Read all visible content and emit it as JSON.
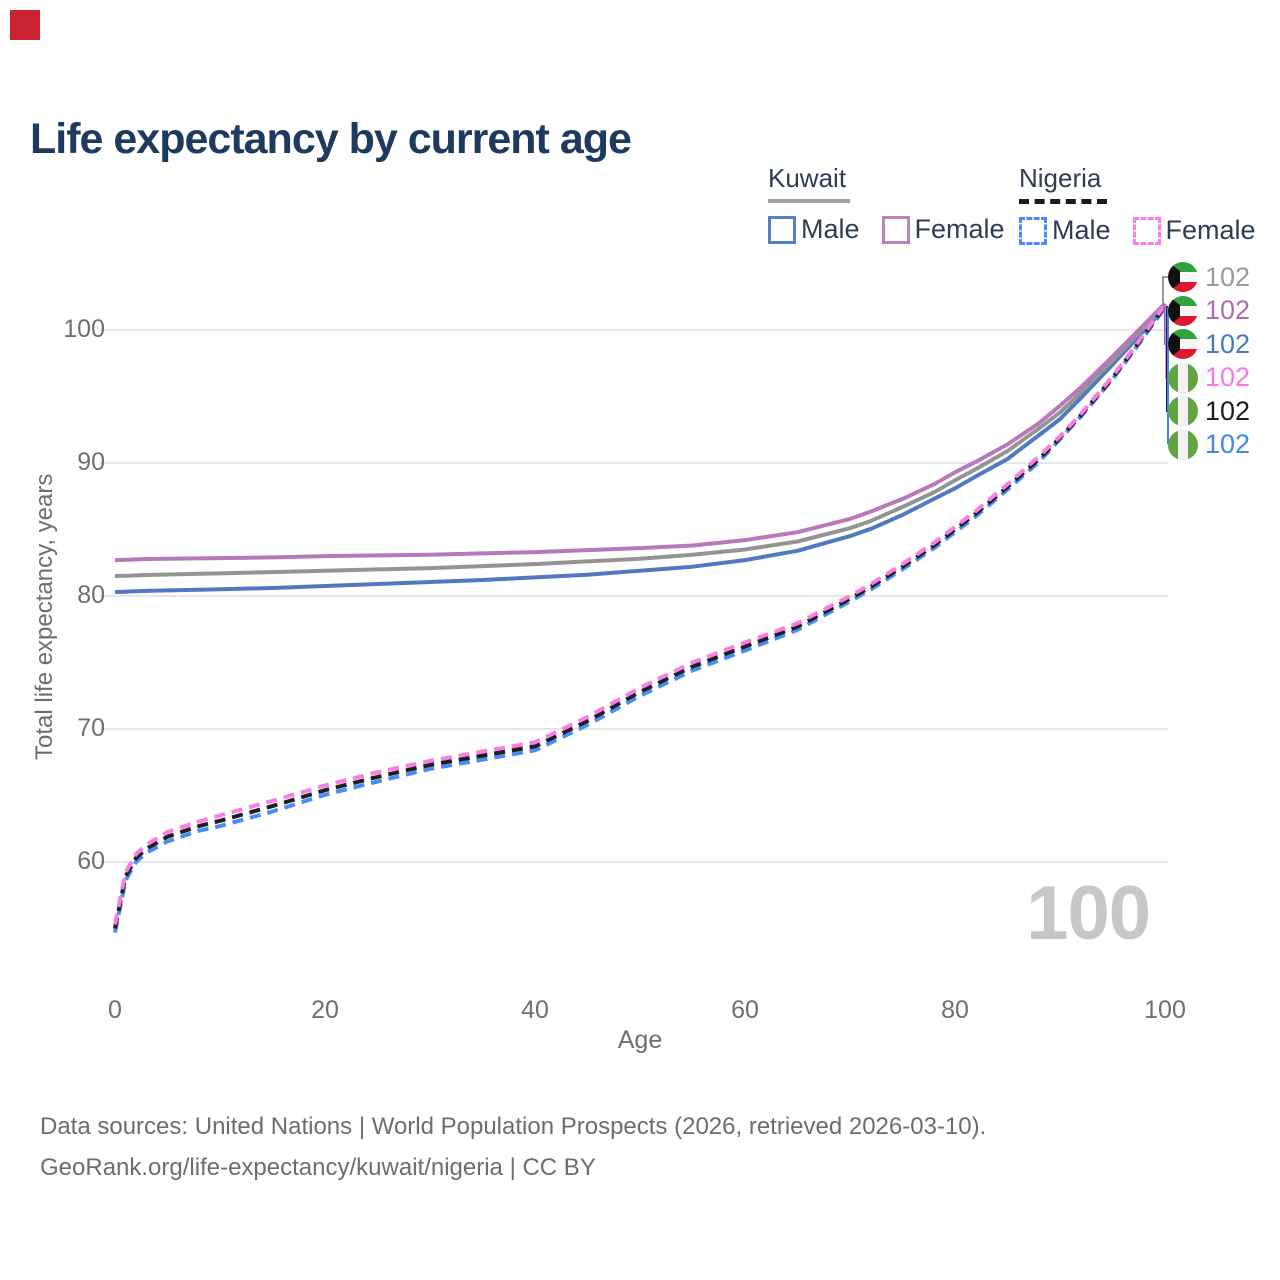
{
  "brand": {
    "logo_color": "#cb2431"
  },
  "title": "Life expectancy by current age",
  "legend": {
    "kuwait": {
      "label": "Kuwait",
      "underline_color": "#a3a3a3",
      "male_label": "Male",
      "female_label": "Female",
      "male_color": "#5580c1",
      "female_color": "#bf7fbf"
    },
    "nigeria": {
      "label": "Nigeria",
      "underline_color": "#1a1a1a",
      "male_label": "Male",
      "female_label": "Female",
      "male_color": "#4a8cf7",
      "female_color": "#fb7dea"
    }
  },
  "axes": {
    "y_title": "Total life expectancy, years",
    "x_title": "Age",
    "y_ticks": [
      100,
      90,
      80,
      70,
      60
    ],
    "x_ticks": [
      0,
      20,
      40,
      60,
      80,
      100
    ]
  },
  "watermark_age": "100",
  "end_labels": [
    {
      "series": "kuwait_all",
      "flag": "kuwait",
      "value": "102",
      "color": "#9a9a9a"
    },
    {
      "series": "kuwait_female",
      "flag": "kuwait",
      "value": "102",
      "color": "#a76fb0"
    },
    {
      "series": "kuwait_male",
      "flag": "kuwait",
      "value": "102",
      "color": "#4a77c2"
    },
    {
      "series": "nigeria_female",
      "flag": "nigeria",
      "value": "102",
      "color": "#fb77e8"
    },
    {
      "series": "nigeria_all",
      "flag": "nigeria",
      "value": "102",
      "color": "#1d1d1d"
    },
    {
      "series": "nigeria_male",
      "flag": "nigeria",
      "value": "102",
      "color": "#4285f4"
    }
  ],
  "footer": {
    "line1": "Data sources: United Nations | World Population Prospects (2026, retrieved 2026-03-10).",
    "line2": "GeoRank.org/life-expectancy/kuwait/nigeria | CC BY"
  },
  "chart_data": {
    "type": "line",
    "title": "Life expectancy by current age",
    "xlabel": "Age",
    "ylabel": "Total life expectancy, years",
    "xlim": [
      0,
      100
    ],
    "ylim": [
      53,
      104
    ],
    "grid": true,
    "legend_position": "top-right",
    "gridline_color": "#e7e7e7",
    "x": [
      0,
      1,
      2,
      3,
      5,
      8,
      10,
      15,
      20,
      25,
      30,
      35,
      40,
      45,
      50,
      55,
      60,
      65,
      70,
      72,
      75,
      78,
      80,
      82,
      85,
      88,
      90,
      92,
      95,
      97,
      100
    ],
    "series": [
      {
        "id": "kuwait_male",
        "name": "Kuwait Male",
        "style": "solid",
        "color": "#5079c1",
        "values": [
          80.3,
          80.32,
          80.35,
          80.38,
          80.42,
          80.47,
          80.5,
          80.6,
          80.75,
          80.9,
          81.05,
          81.2,
          81.4,
          81.6,
          81.9,
          82.2,
          82.7,
          83.4,
          84.5,
          85.05,
          86.1,
          87.3,
          88.1,
          89.0,
          90.3,
          92.1,
          93.3,
          94.9,
          97.4,
          99.1,
          101.7
        ]
      },
      {
        "id": "kuwait_all",
        "name": "Kuwait Both sexes",
        "style": "solid",
        "color": "#949494",
        "values": [
          81.5,
          81.52,
          81.55,
          81.58,
          81.62,
          81.67,
          81.7,
          81.8,
          81.9,
          82.0,
          82.1,
          82.25,
          82.4,
          82.6,
          82.8,
          83.1,
          83.5,
          84.1,
          85.1,
          85.65,
          86.7,
          87.8,
          88.7,
          89.55,
          90.9,
          92.6,
          93.8,
          95.3,
          97.7,
          99.35,
          101.85
        ]
      },
      {
        "id": "kuwait_female",
        "name": "Kuwait Female",
        "style": "solid",
        "color": "#b878bc",
        "values": [
          82.7,
          82.72,
          82.75,
          82.78,
          82.8,
          82.83,
          82.85,
          82.9,
          83.0,
          83.05,
          83.1,
          83.2,
          83.3,
          83.45,
          83.6,
          83.8,
          84.2,
          84.8,
          85.8,
          86.35,
          87.3,
          88.4,
          89.3,
          90.1,
          91.4,
          93.0,
          94.3,
          95.7,
          98.0,
          99.6,
          102.0
        ]
      },
      {
        "id": "nigeria_male",
        "name": "Nigeria Male",
        "style": "dashed",
        "color": "#4a8bf5",
        "values": [
          54.7,
          58.6,
          60.0,
          60.7,
          61.55,
          62.35,
          62.7,
          63.8,
          65.05,
          66.05,
          67.0,
          67.7,
          68.4,
          70.3,
          72.5,
          74.4,
          75.9,
          77.45,
          79.6,
          80.5,
          82.0,
          83.6,
          84.8,
          86.0,
          88.0,
          90.1,
          91.8,
          93.5,
          96.3,
          98.4,
          101.7
        ]
      },
      {
        "id": "nigeria_all",
        "name": "Nigeria Both sexes",
        "style": "dashed",
        "color": "#1f1f1f",
        "values": [
          55.0,
          58.9,
          60.3,
          61.0,
          61.9,
          62.7,
          63.1,
          64.2,
          65.4,
          66.4,
          67.3,
          68.0,
          68.7,
          70.6,
          72.8,
          74.7,
          76.2,
          77.7,
          79.8,
          80.7,
          82.2,
          83.8,
          85.0,
          86.2,
          88.2,
          90.3,
          91.9,
          93.6,
          96.4,
          98.5,
          101.8
        ]
      },
      {
        "id": "nigeria_female",
        "name": "Nigeria Female",
        "style": "dashed",
        "color": "#fb7de4",
        "values": [
          55.3,
          59.2,
          60.6,
          61.3,
          62.25,
          63.05,
          63.5,
          64.6,
          65.75,
          66.75,
          67.6,
          68.3,
          69.0,
          70.9,
          73.1,
          75.0,
          76.5,
          77.95,
          80.0,
          80.9,
          82.4,
          84.0,
          85.2,
          86.4,
          88.4,
          90.5,
          92.0,
          93.7,
          96.5,
          98.6,
          101.9
        ]
      }
    ]
  }
}
